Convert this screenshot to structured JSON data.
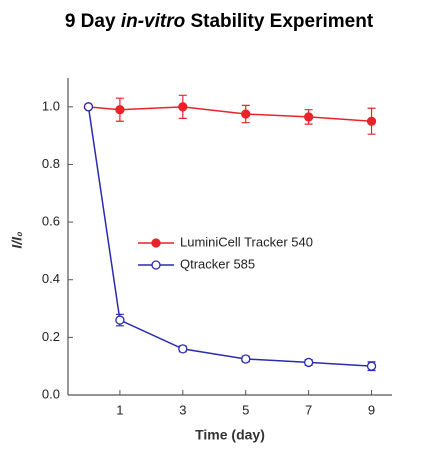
{
  "chart_data": {
    "type": "line",
    "title": [
      "9 Day",
      "in-vitro",
      "Stability Experiment"
    ],
    "xlabel": "Time (day)",
    "ylabel": "I/I₀",
    "xlim": [
      -0.65,
      9.65
    ],
    "xticks": [
      1,
      3,
      5,
      7,
      9
    ],
    "ylim": [
      0,
      1.1
    ],
    "yticks": [
      {
        "value": 0,
        "label": "0.0"
      },
      0.2,
      0.4,
      0.6,
      0.8,
      {
        "value": 1,
        "label": "1.0"
      }
    ],
    "series": [
      {
        "name": "LuminiCell Tracker 540",
        "color": "#e8242a",
        "marker": "filled",
        "x": [
          0,
          1,
          3,
          5,
          7,
          9
        ],
        "values": [
          1.0,
          0.99,
          1.0,
          0.975,
          0.965,
          0.95
        ],
        "errors": [
          0.0,
          0.04,
          0.04,
          0.03,
          0.025,
          0.045
        ]
      },
      {
        "name": "Qtracker 585",
        "color": "#2b2bb0",
        "marker": "hollow",
        "x": [
          0,
          1,
          3,
          5,
          7,
          9
        ],
        "values": [
          1.0,
          0.26,
          0.16,
          0.125,
          0.113,
          0.1
        ],
        "errors": [
          0.0,
          0.02,
          0.01,
          0.01,
          0.01,
          0.015
        ]
      }
    ]
  }
}
